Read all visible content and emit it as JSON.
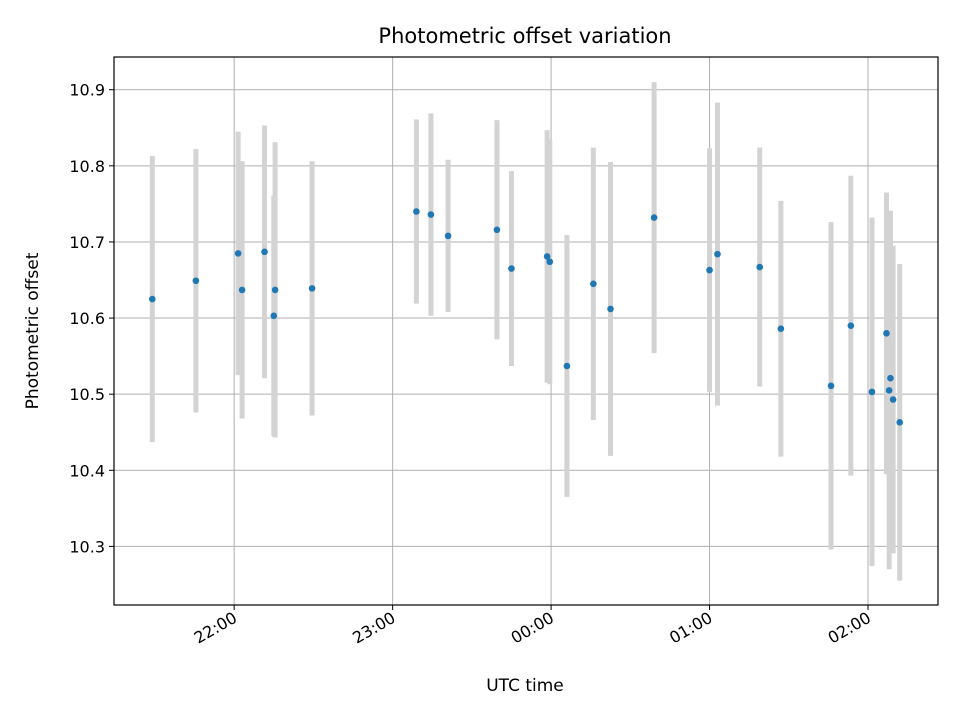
{
  "chart_data": {
    "type": "scatter",
    "title": "Photometric offset variation",
    "xlabel": "UTC time",
    "ylabel": "Photometric offset",
    "x_tick_labels": [
      "22:00",
      "23:00",
      "00:00",
      "01:00",
      "02:00"
    ],
    "x_tick_minutes": [
      1320,
      1380,
      1440,
      1500,
      1560
    ],
    "y_ticks": [
      10.3,
      10.4,
      10.5,
      10.6,
      10.7,
      10.8,
      10.9
    ],
    "y_tick_labels": [
      "10.3",
      "10.4",
      "10.5",
      "10.6",
      "10.7",
      "10.8",
      "10.9"
    ],
    "xlim_minutes": [
      1274.5,
      1586.5
    ],
    "ylim": [
      10.223,
      10.943
    ],
    "grid": true,
    "point_color": "#1f77b4",
    "errorbar_color": "#d3d3d3",
    "points": [
      {
        "t": 1289.0,
        "y": 10.625,
        "err": 0.188
      },
      {
        "t": 1305.5,
        "y": 10.649,
        "err": 0.173
      },
      {
        "t": 1321.5,
        "y": 10.685,
        "err": 0.16
      },
      {
        "t": 1323.0,
        "y": 10.637,
        "err": 0.169
      },
      {
        "t": 1331.5,
        "y": 10.687,
        "err": 0.166
      },
      {
        "t": 1335.0,
        "y": 10.603,
        "err": 0.158
      },
      {
        "t": 1335.5,
        "y": 10.637,
        "err": 0.194
      },
      {
        "t": 1349.5,
        "y": 10.639,
        "err": 0.167
      },
      {
        "t": 1389.0,
        "y": 10.74,
        "err": 0.121
      },
      {
        "t": 1394.5,
        "y": 10.736,
        "err": 0.133
      },
      {
        "t": 1401.0,
        "y": 10.708,
        "err": 0.1
      },
      {
        "t": 1419.5,
        "y": 10.716,
        "err": 0.144
      },
      {
        "t": 1425.0,
        "y": 10.665,
        "err": 0.128
      },
      {
        "t": 1438.5,
        "y": 10.681,
        "err": 0.166
      },
      {
        "t": 1439.5,
        "y": 10.674,
        "err": 0.161
      },
      {
        "t": 1446.0,
        "y": 10.537,
        "err": 0.172
      },
      {
        "t": 1456.0,
        "y": 10.645,
        "err": 0.179
      },
      {
        "t": 1462.5,
        "y": 10.612,
        "err": 0.193
      },
      {
        "t": 1479.0,
        "y": 10.732,
        "err": 0.178
      },
      {
        "t": 1500.0,
        "y": 10.663,
        "err": 0.16
      },
      {
        "t": 1503.0,
        "y": 10.684,
        "err": 0.199
      },
      {
        "t": 1519.0,
        "y": 10.667,
        "err": 0.157
      },
      {
        "t": 1527.0,
        "y": 10.586,
        "err": 0.168
      },
      {
        "t": 1546.0,
        "y": 10.511,
        "err": 0.215
      },
      {
        "t": 1553.5,
        "y": 10.59,
        "err": 0.197
      },
      {
        "t": 1561.5,
        "y": 10.503,
        "err": 0.229
      },
      {
        "t": 1567.0,
        "y": 10.58,
        "err": 0.185
      },
      {
        "t": 1568.0,
        "y": 10.505,
        "err": 0.235
      },
      {
        "t": 1568.5,
        "y": 10.521,
        "err": 0.22
      },
      {
        "t": 1569.5,
        "y": 10.493,
        "err": 0.202
      },
      {
        "t": 1572.0,
        "y": 10.463,
        "err": 0.208
      }
    ]
  }
}
